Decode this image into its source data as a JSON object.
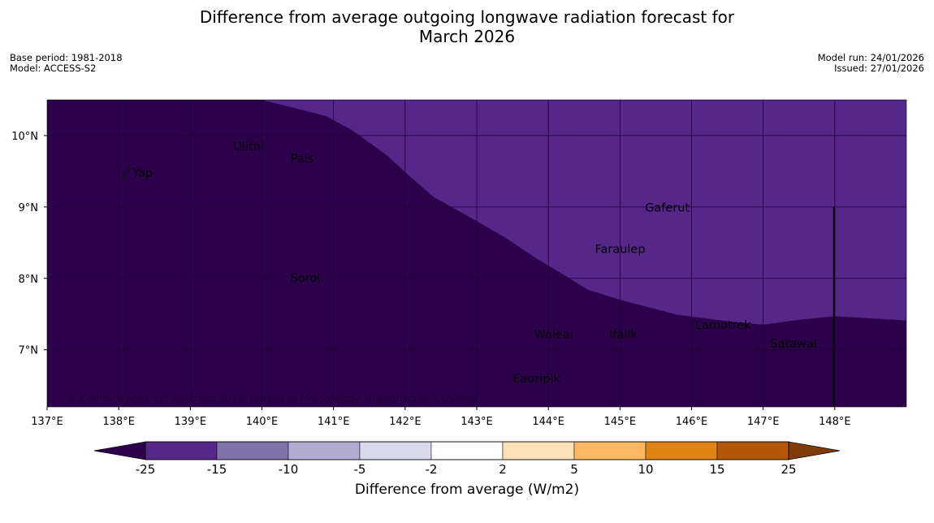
{
  "title_line1": "Difference from average outgoing longwave radiation forecast for",
  "title_line2": "March 2026",
  "meta_left": [
    "Base period: 1981-2018",
    "Model: ACCESS-S2"
  ],
  "meta_right": [
    "Model run: 24/01/2026",
    "Issued: 27/01/2026"
  ],
  "copyright": "© Commonwealth of Australia 2026, Bureau of Meteorology, supported by COSPPac",
  "map": {
    "lon_range": [
      137,
      149
    ],
    "lat_range": [
      6.2,
      10.5
    ],
    "x_ticks": [
      {
        "v": 137,
        "label": "137°E"
      },
      {
        "v": 138,
        "label": "138°E"
      },
      {
        "v": 139,
        "label": "139°E"
      },
      {
        "v": 140,
        "label": "140°E"
      },
      {
        "v": 141,
        "label": "141°E"
      },
      {
        "v": 142,
        "label": "142°E"
      },
      {
        "v": 143,
        "label": "143°E"
      },
      {
        "v": 144,
        "label": "144°E"
      },
      {
        "v": 145,
        "label": "145°E"
      },
      {
        "v": 146,
        "label": "146°E"
      },
      {
        "v": 147,
        "label": "147°E"
      },
      {
        "v": 148,
        "label": "148°E"
      }
    ],
    "y_ticks": [
      {
        "v": 10,
        "label": "10°N"
      },
      {
        "v": 9,
        "label": "9°N"
      },
      {
        "v": 8,
        "label": "8°N"
      },
      {
        "v": 7,
        "label": "7°N"
      }
    ],
    "colors": {
      "deep": "#2d004b",
      "light": "#542788",
      "grid": "#1e0036"
    },
    "boundary": [
      [
        140.0,
        10.5
      ],
      [
        140.4,
        10.4
      ],
      [
        140.9,
        10.27
      ],
      [
        141.25,
        10.08
      ],
      [
        141.75,
        9.72
      ],
      [
        142.1,
        9.4
      ],
      [
        142.4,
        9.14
      ],
      [
        142.9,
        8.86
      ],
      [
        143.4,
        8.57
      ],
      [
        143.8,
        8.3
      ],
      [
        144.2,
        8.06
      ],
      [
        144.55,
        7.84
      ],
      [
        145.0,
        7.7
      ],
      [
        145.5,
        7.57
      ],
      [
        145.8,
        7.49
      ],
      [
        146.5,
        7.4
      ],
      [
        147.0,
        7.35
      ],
      [
        147.5,
        7.42
      ],
      [
        148.0,
        7.47
      ],
      [
        149.0,
        7.41
      ]
    ],
    "places": [
      {
        "name": "Yap",
        "lon": 138.1,
        "lat": 9.48
      },
      {
        "name": "Ulithi",
        "lon": 139.6,
        "lat": 9.85
      },
      {
        "name": "Pais",
        "lon": 140.4,
        "lat": 9.68
      },
      {
        "name": "Gaferut",
        "lon": 145.35,
        "lat": 8.99
      },
      {
        "name": "Faraulep",
        "lon": 144.65,
        "lat": 8.41
      },
      {
        "name": "Sorol",
        "lon": 140.4,
        "lat": 8.01
      },
      {
        "name": "Lamotrek",
        "lon": 146.05,
        "lat": 7.35
      },
      {
        "name": "Woleai",
        "lon": 143.8,
        "lat": 7.22
      },
      {
        "name": "Ifalik",
        "lon": 144.85,
        "lat": 7.22
      },
      {
        "name": "Satawal",
        "lon": 147.1,
        "lat": 7.09
      },
      {
        "name": "Eauripik",
        "lon": 143.5,
        "lat": 6.6
      }
    ],
    "marker_line": {
      "lon": 148.0,
      "lat_top": 9.0
    }
  },
  "colorbar": {
    "label": "Difference from average (W/m2)",
    "under_color": "#2d004b",
    "over_color": "#7f3b08",
    "bins": [
      {
        "color": "#542788"
      },
      {
        "color": "#8073ac"
      },
      {
        "color": "#b2abd2"
      },
      {
        "color": "#d8daeb"
      },
      {
        "color": "#ffffff"
      },
      {
        "color": "#fee0b6"
      },
      {
        "color": "#fdb863"
      },
      {
        "color": "#e08214"
      },
      {
        "color": "#b35806"
      }
    ],
    "ticks": [
      "-25",
      "-15",
      "-10",
      "-5",
      "-2",
      "2",
      "5",
      "10",
      "15",
      "25"
    ]
  }
}
